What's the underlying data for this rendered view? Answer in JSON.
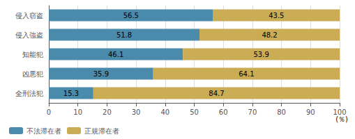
{
  "chart_data": {
    "type": "bar",
    "orientation": "horizontal",
    "stacked": true,
    "categories": [
      "侵入窃盗",
      "侵入強盗",
      "知能犯",
      "凶悪犯",
      "全刑法犯"
    ],
    "series": [
      {
        "name": "不法滞在者",
        "color": "#4a8aab",
        "values": [
          56.5,
          51.8,
          46.1,
          35.9,
          15.3
        ]
      },
      {
        "name": "正規滞在者",
        "color": "#c9ac54",
        "values": [
          43.5,
          48.2,
          53.9,
          64.1,
          84.7
        ]
      }
    ],
    "xlim": [
      0,
      100
    ],
    "xticks": [
      0,
      10,
      20,
      30,
      40,
      50,
      60,
      70,
      80,
      90,
      100
    ],
    "grid": true,
    "data_labels": true,
    "legend": "bottom left",
    "annotations": [
      "(％)"
    ]
  }
}
